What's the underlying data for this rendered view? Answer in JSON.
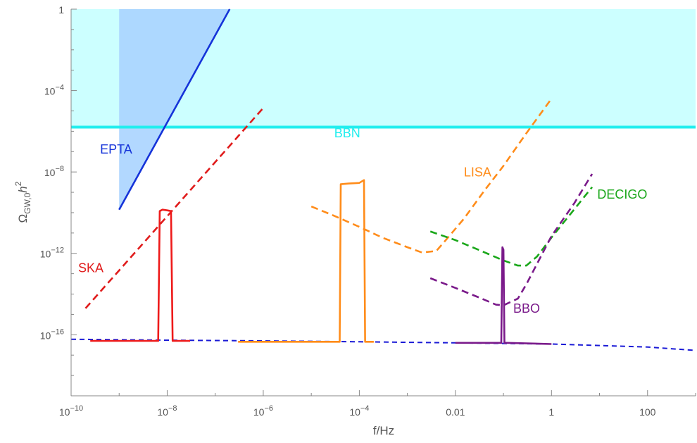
{
  "chart_data": {
    "type": "line",
    "title": "",
    "xlabel": "f/Hz",
    "ylabel_main": "Ω",
    "ylabel_sub": "GW,0",
    "ylabel_tail": "h",
    "ylabel_sup": "2",
    "x_scale": "log",
    "y_scale": "log",
    "xlim": [
      1e-10,
      1000
    ],
    "ylim": [
      1e-19,
      1
    ],
    "grid": false,
    "legend": "none",
    "x_ticks": [
      {
        "value": 1e-10,
        "base": "10",
        "exp": "−10"
      },
      {
        "value": 1e-08,
        "base": "10",
        "exp": "−8"
      },
      {
        "value": 1e-06,
        "base": "10",
        "exp": "−6"
      },
      {
        "value": 0.0001,
        "base": "10",
        "exp": "−4"
      },
      {
        "value": 0.01,
        "base": "0.01",
        "exp": ""
      },
      {
        "value": 1,
        "base": "1",
        "exp": ""
      },
      {
        "value": 100,
        "base": "100",
        "exp": ""
      }
    ],
    "y_ticks": [
      {
        "value": 1e-16,
        "base": "10",
        "exp": "−16"
      },
      {
        "value": 1e-12,
        "base": "10",
        "exp": "−12"
      },
      {
        "value": 1e-08,
        "base": "10",
        "exp": "−8"
      },
      {
        "value": 0.0001,
        "base": "10",
        "exp": "−4"
      },
      {
        "value": 1,
        "base": "1",
        "exp": ""
      }
    ],
    "regions": [
      {
        "name": "BBN",
        "color": "#ccffff",
        "stroke": "#22eeee",
        "y_min": 1.6e-06,
        "y_max": 1
      },
      {
        "name": "EPTA",
        "color": "#aad4ff",
        "stroke": "#aad4ff",
        "x_min": 1e-09,
        "excluded_above_line": true
      }
    ],
    "series": [
      {
        "name": "EPTA",
        "color": "#1533d9",
        "style": "solid",
        "x": [
          1e-09,
          2e-07
        ],
        "y": [
          1.4e-10,
          1
        ]
      },
      {
        "name": "SKA",
        "color": "#e01b1b",
        "style": "dashed",
        "x": [
          2e-10,
          1e-06
        ],
        "y": [
          2e-15,
          1.4e-05
        ]
      },
      {
        "name": "LISA",
        "color": "#ff8c1a",
        "style": "dashed",
        "x": [
          1e-05,
          3e-05,
          0.0001,
          0.0003,
          0.001,
          0.002,
          0.004,
          0.007,
          0.015,
          0.04,
          0.1,
          0.3,
          1
        ],
        "y": [
          2e-10,
          7e-11,
          2e-11,
          6e-12,
          2e-12,
          1.1e-12,
          1.3e-12,
          6e-12,
          5e-11,
          1.2e-09,
          2e-08,
          8e-07,
          4e-05
        ]
      },
      {
        "name": "DECIGO",
        "color": "#1aa71a",
        "style": "dashed",
        "x": [
          0.003,
          0.01,
          0.03,
          0.1,
          0.2,
          0.3,
          0.5,
          1,
          3,
          7
        ],
        "y": [
          1.2e-11,
          4.5e-12,
          1.5e-12,
          4.5e-13,
          2.5e-13,
          2.5e-13,
          7e-13,
          6e-12,
          1.5e-10,
          1.8e-09
        ]
      },
      {
        "name": "BBO",
        "color": "#7a1a8a",
        "style": "dashed",
        "x": [
          0.003,
          0.01,
          0.03,
          0.07,
          0.1,
          0.2,
          0.3,
          1,
          3,
          7
        ],
        "y": [
          6e-14,
          2e-14,
          7e-15,
          3e-15,
          2.8e-15,
          6e-15,
          3e-14,
          7e-12,
          3e-10,
          8e-09
        ]
      },
      {
        "name": "Background",
        "color": "#1a1ad6",
        "style": "dashed",
        "x": [
          1e-10,
          1e-08,
          1e-06,
          0.0001,
          0.01,
          1,
          100,
          1000
        ],
        "y": [
          6e-17,
          5.4e-17,
          5e-17,
          4.5e-17,
          4e-17,
          3.5e-17,
          2.5e-17,
          1.7e-17
        ]
      },
      {
        "name": "Peak-nHz",
        "color": "#ee1a1a",
        "style": "solid",
        "x": [
          2.5e-10,
          6e-09,
          6.5e-09,
          7e-09,
          8e-09,
          1e-08,
          1.2e-08,
          1.3e-08,
          1.4e-08,
          3e-08
        ],
        "y": [
          5e-17,
          5e-17,
          5e-17,
          1.2e-10,
          1.4e-10,
          1.3e-10,
          1.2e-10,
          5e-17,
          5e-17,
          5e-17
        ]
      },
      {
        "name": "Peak-mHz",
        "color": "#ff8c1a",
        "style": "solid",
        "x": [
          3e-07,
          3.5e-05,
          3.9e-05,
          4.1e-05,
          6e-05,
          0.0001,
          0.000125,
          0.000132,
          0.000138,
          0.0002
        ],
        "y": [
          4.5e-17,
          4.5e-17,
          4.5e-17,
          2.5e-09,
          2.7e-09,
          2.9e-09,
          4e-09,
          4.5e-17,
          4.5e-17,
          4.5e-17
        ]
      },
      {
        "name": "Peak-dHz",
        "color": "#7a1a8a",
        "style": "solid",
        "x": [
          0.01,
          0.08,
          0.09,
          0.095,
          0.1,
          0.105,
          0.11,
          0.12,
          1
        ],
        "y": [
          4e-17,
          4e-17,
          4e-17,
          2e-12,
          1.5e-12,
          4e-17,
          4e-17,
          4e-17,
          3.5e-17
        ]
      }
    ],
    "annotations": [
      {
        "text": "BBN",
        "x": 3e-05,
        "y": 5e-07,
        "color": "#22eeee"
      },
      {
        "text": "EPTA",
        "x": 4e-10,
        "y": 8e-08,
        "color": "#1533d9"
      },
      {
        "text": "SKA",
        "x": 1.4e-10,
        "y": 1.2e-13,
        "color": "#e01b1b"
      },
      {
        "text": "LISA",
        "x": 0.015,
        "y": 6e-09,
        "color": "#ff8c1a"
      },
      {
        "text": "DECIGO",
        "x": 9,
        "y": 5e-10,
        "color": "#1aa71a"
      },
      {
        "text": "BBO",
        "x": 0.16,
        "y": 1.2e-15,
        "color": "#7a1a8a"
      }
    ]
  }
}
